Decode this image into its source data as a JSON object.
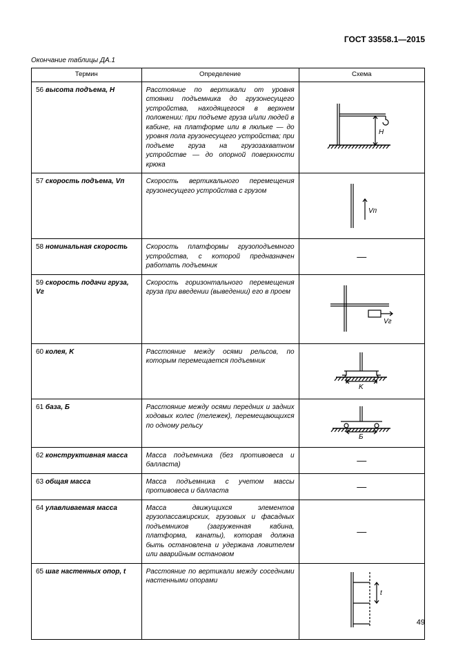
{
  "doc_code": "ГОСТ 33558.1—2015",
  "table_caption": "Окончание таблицы ДА.1",
  "headers": {
    "term": "Термин",
    "definition": "Определение",
    "scheme": "Схема"
  },
  "rows": [
    {
      "num": "56",
      "term": "высота подъема, H",
      "def": "Расстояние по вертикали от уровня стоянки подъемника до грузонесущего устройства, находящегося в верхнем положении: при подъеме груза и/или людей в кабине, на платформе или в люльке — до уровня пола грузонесущего устройства; при подъеме груза на грузозахватном устройстве — до опорной поверхности крюка",
      "scheme": "h56"
    },
    {
      "num": "57",
      "term": "скорость подъема, Vп",
      "def": "Скорость вертикального перемещения грузонесущего устройства с грузом",
      "scheme": "h57"
    },
    {
      "num": "58",
      "term": "номинальная скорость",
      "def": "Скорость платформы грузоподъемного устройства, с которой предназначен работать подъемник",
      "scheme": "dash"
    },
    {
      "num": "59",
      "term": "скорость подачи груза, Vг",
      "def": "Скорость горизонтального перемещения груза при введении (выведении) его в проем",
      "scheme": "h59"
    },
    {
      "num": "60",
      "term": "колея, K",
      "def": "Расстояние между осями рельсов, по которым перемещается подъемник",
      "scheme": "h60"
    },
    {
      "num": "61",
      "term": "база, Б",
      "def": "Расстояние между осями передних и задних ходовых колес (тележек), перемещающихся по одному рельсу",
      "scheme": "h61"
    },
    {
      "num": "62",
      "term": "конструктивная масса",
      "def": "Масса подъемника (без противовеса и балласта)",
      "scheme": "dash"
    },
    {
      "num": "63",
      "term": "общая масса",
      "def": "Масса подъемника с учетом массы противовеса и балласта",
      "scheme": "dash"
    },
    {
      "num": "64",
      "term": "улавливаемая масса",
      "def": "Масса движущихся элементов грузопассажирских, грузовых и фасадных подъемников (загруженная кабина, платформа, канаты), которая должна быть остановлена и удержана ловителем или аварийным остановом",
      "scheme": "dash"
    },
    {
      "num": "65",
      "term": "шаг настенных опор, t",
      "def": "Расстояние по вертикали между соседними настенными опорами",
      "scheme": "h65"
    }
  ],
  "page_number": "49",
  "svg": {
    "stroke": "#000000",
    "stroke_width": 1.2,
    "font_size_label": 10
  }
}
